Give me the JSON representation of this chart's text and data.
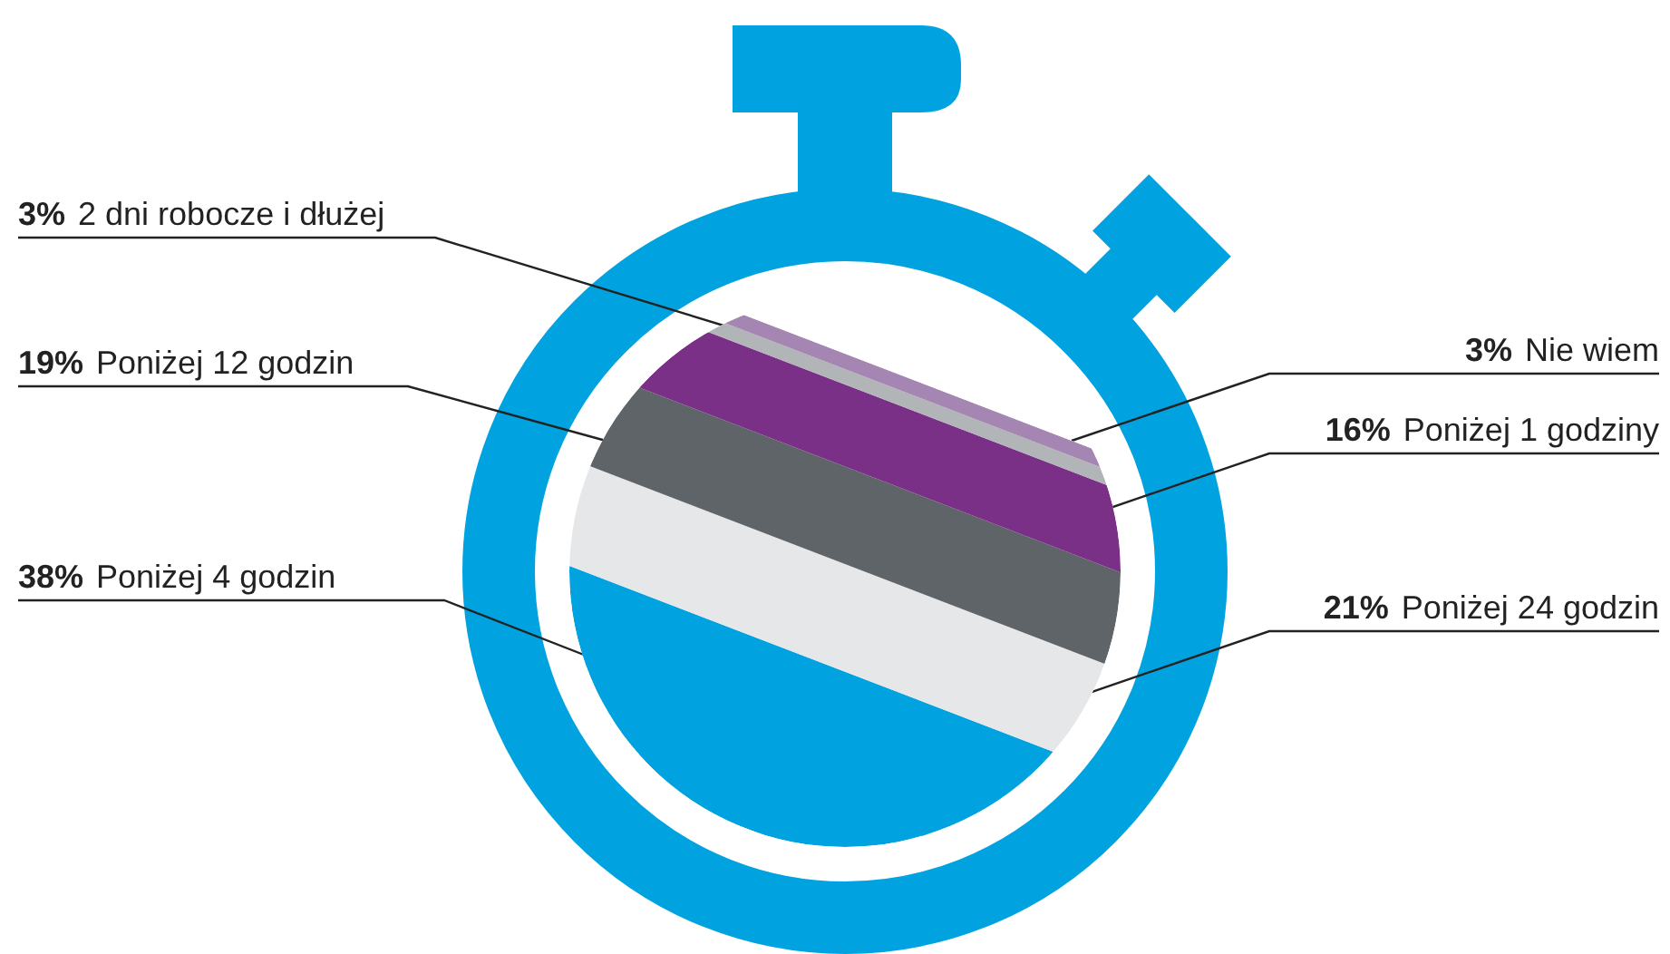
{
  "chart_data": {
    "type": "other",
    "categories": [
      "Poniżej 4 godzin",
      "Poniżej 24 godzin",
      "Poniżej 12 godzin",
      "Poniżej 1 godziny",
      "2 dni robocze i dłużej",
      "Nie wiem"
    ],
    "values": [
      38,
      21,
      19,
      16,
      3,
      3
    ],
    "value_labels": [
      "38%",
      "21%",
      "19%",
      "16%",
      "3%",
      "3%"
    ],
    "colors": [
      "#00a3e0",
      "#e6e7e8",
      "#5f6468",
      "#7b3087",
      "#b1b5b7",
      "#a585b1"
    ]
  }
}
